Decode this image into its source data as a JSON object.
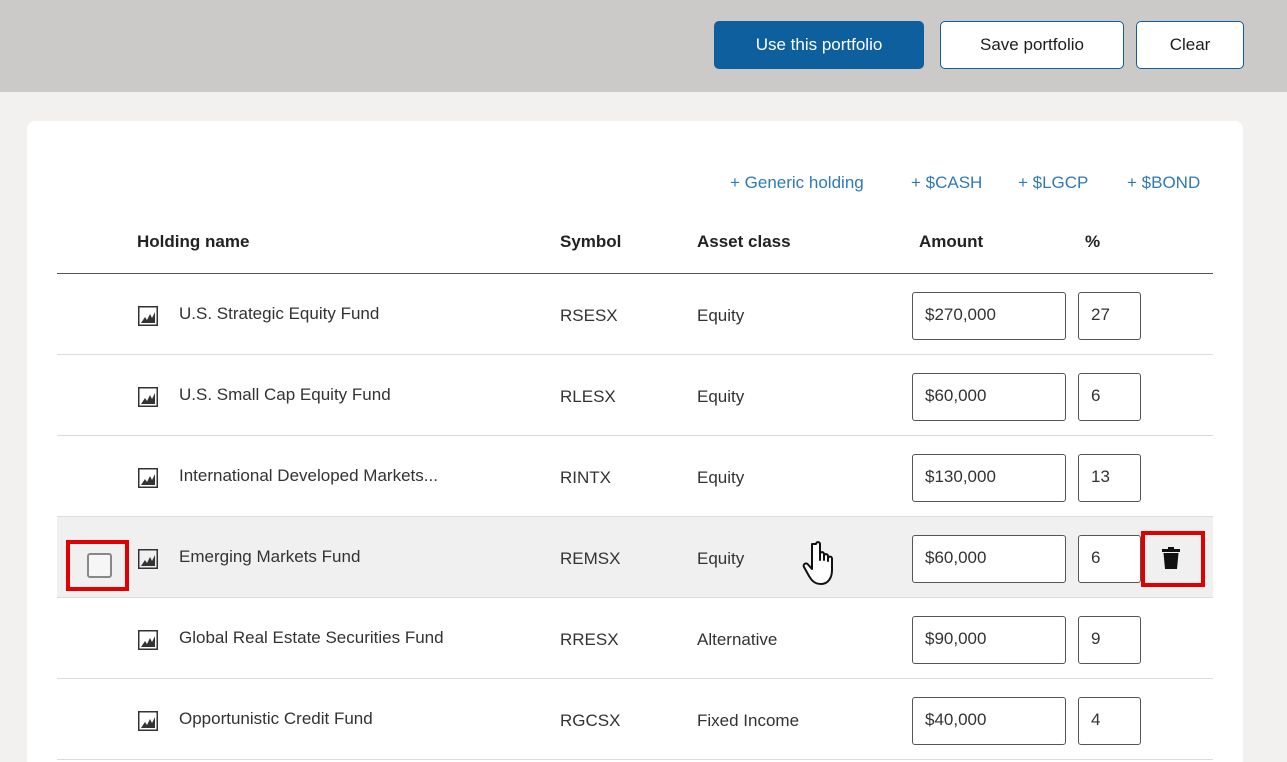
{
  "toolbar": {
    "use_portfolio_label": "Use this portfolio",
    "save_portfolio_label": "Save portfolio",
    "clear_label": "Clear"
  },
  "add_links": {
    "generic": "+ Generic holding",
    "cash": "+ $CASH",
    "lgcp": "+ $LGCP",
    "bond": "+ $BOND"
  },
  "table": {
    "headers": {
      "name": "Holding name",
      "symbol": "Symbol",
      "asset_class": "Asset class",
      "amount": "Amount",
      "percent": "%"
    },
    "rows": [
      {
        "name": "U.S. Strategic Equity Fund",
        "symbol": "RSESX",
        "asset_class": "Equity",
        "amount": "$270,000",
        "percent": "27"
      },
      {
        "name": "U.S. Small Cap Equity Fund",
        "symbol": "RLESX",
        "asset_class": "Equity",
        "amount": "$60,000",
        "percent": "6"
      },
      {
        "name": "International Developed Markets...",
        "symbol": "RINTX",
        "asset_class": "Equity",
        "amount": "$130,000",
        "percent": "13"
      },
      {
        "name": "Emerging Markets Fund",
        "symbol": "REMSX",
        "asset_class": "Equity",
        "amount": "$60,000",
        "percent": "6"
      },
      {
        "name": "Global Real Estate Securities Fund",
        "symbol": "RRESX",
        "asset_class": "Alternative",
        "amount": "$90,000",
        "percent": "9"
      },
      {
        "name": "Opportunistic Credit Fund",
        "symbol": "RGCSX",
        "asset_class": "Fixed Income",
        "amount": "$40,000",
        "percent": "4"
      }
    ]
  },
  "colors": {
    "primary": "#0d5f9e",
    "link": "#2e7bb8",
    "highlight": "#e00000",
    "topbar": "#cbcac8"
  },
  "icons": {
    "fund": "fund-chart-icon",
    "delete": "trash-icon",
    "cursor": "hand-pointer-icon"
  }
}
